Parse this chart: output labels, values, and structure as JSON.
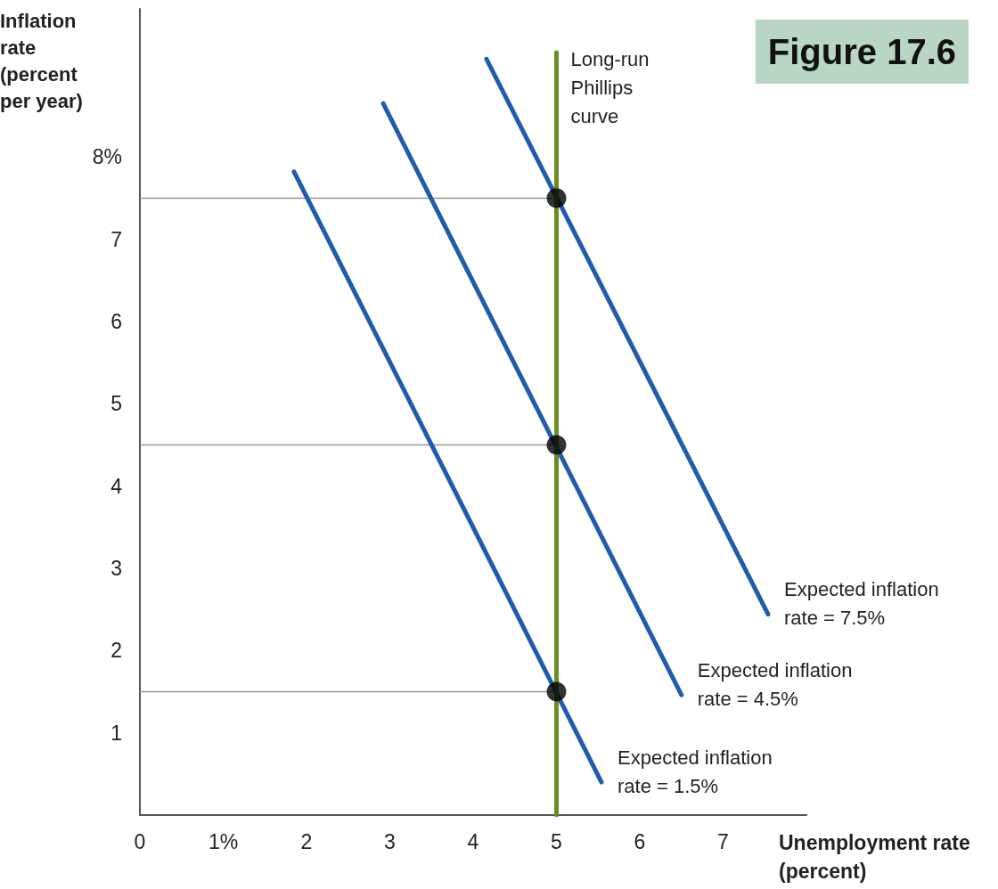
{
  "chart_data": {
    "type": "line",
    "title": "Figure 17.6",
    "xlabel": "Unemployment rate (percent)",
    "ylabel": "Inflation rate (percent per year)",
    "xlim": [
      0,
      8
    ],
    "ylim": [
      0,
      9.8
    ],
    "xticks": [
      {
        "value": 0,
        "label": "0"
      },
      {
        "value": 1,
        "label": "1%"
      },
      2,
      3,
      4,
      5,
      6,
      7
    ],
    "yticks": [
      1,
      2,
      3,
      4,
      5,
      6,
      7,
      {
        "value": 8,
        "label": "8%"
      }
    ],
    "grid": false,
    "legend": false,
    "series": [
      {
        "name": "Expected inflation rate = 1.5%",
        "color": "#1f5cad",
        "x": [
          1.85,
          5.54
        ],
        "values": [
          7.82,
          0.4
        ],
        "marker": "none",
        "line_style": "solid"
      },
      {
        "name": "Expected inflation rate = 4.5%",
        "color": "#1f5cad",
        "x": [
          2.92,
          6.5
        ],
        "values": [
          8.65,
          1.46
        ],
        "marker": "none",
        "line_style": "solid"
      },
      {
        "name": "Expected inflation rate = 7.5%",
        "color": "#1f5cad",
        "x": [
          4.16,
          7.54
        ],
        "values": [
          9.19,
          2.44
        ],
        "marker": "none",
        "line_style": "solid"
      },
      {
        "name": "Long-run Phillips curve",
        "color": "#6b8e23",
        "x": [
          5,
          5
        ],
        "values": [
          0,
          9.27
        ],
        "marker": "none",
        "line_style": "solid"
      },
      {
        "color": "#888888",
        "x": [
          0,
          5
        ],
        "values": [
          7.5,
          7.5
        ],
        "marker": "none",
        "line_style": "dotted"
      },
      {
        "color": "#888888",
        "x": [
          0,
          5
        ],
        "values": [
          4.5,
          4.5
        ],
        "marker": "none",
        "line_style": "dotted"
      },
      {
        "color": "#888888",
        "x": [
          0,
          5
        ],
        "values": [
          1.5,
          1.5
        ],
        "marker": "none",
        "line_style": "dotted"
      },
      {
        "type": "scatter",
        "color": "#000000",
        "x": [
          5,
          5,
          5
        ],
        "values": [
          1.5,
          4.5,
          7.5
        ],
        "marker": "circle"
      }
    ]
  }
}
